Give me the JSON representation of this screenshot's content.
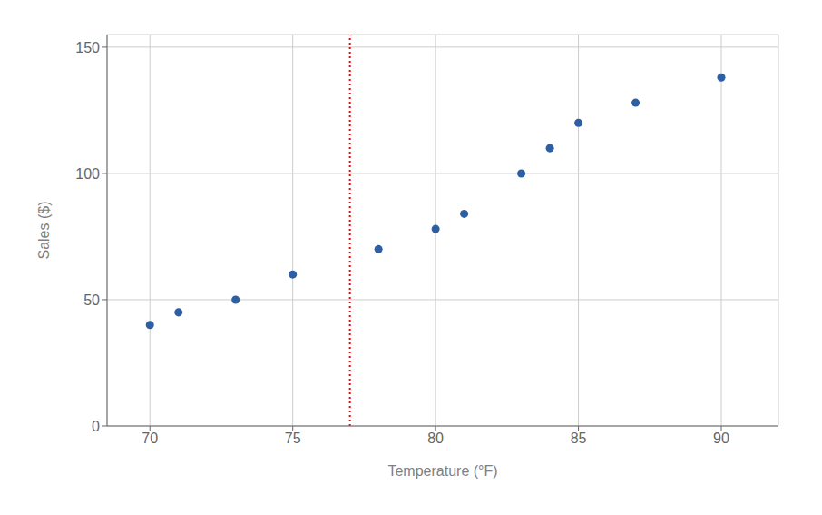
{
  "chart_data": {
    "type": "scatter",
    "x": [
      70,
      71,
      73,
      75,
      78,
      80,
      81,
      83,
      84,
      85,
      87,
      90
    ],
    "values": [
      40,
      45,
      50,
      60,
      70,
      78,
      84,
      100,
      110,
      120,
      128,
      138
    ],
    "color": "#2E5FA3",
    "xlabel": "Temperature (°F)",
    "ylabel": "Sales ($)",
    "xlim": [
      68.5,
      92
    ],
    "ylim": [
      0,
      155
    ],
    "xticks": [
      70,
      75,
      80,
      85,
      90
    ],
    "yticks": [
      0,
      50,
      100,
      150
    ],
    "grid": true,
    "vline": {
      "x": 77,
      "color": "red",
      "line_style": "dotted"
    }
  }
}
